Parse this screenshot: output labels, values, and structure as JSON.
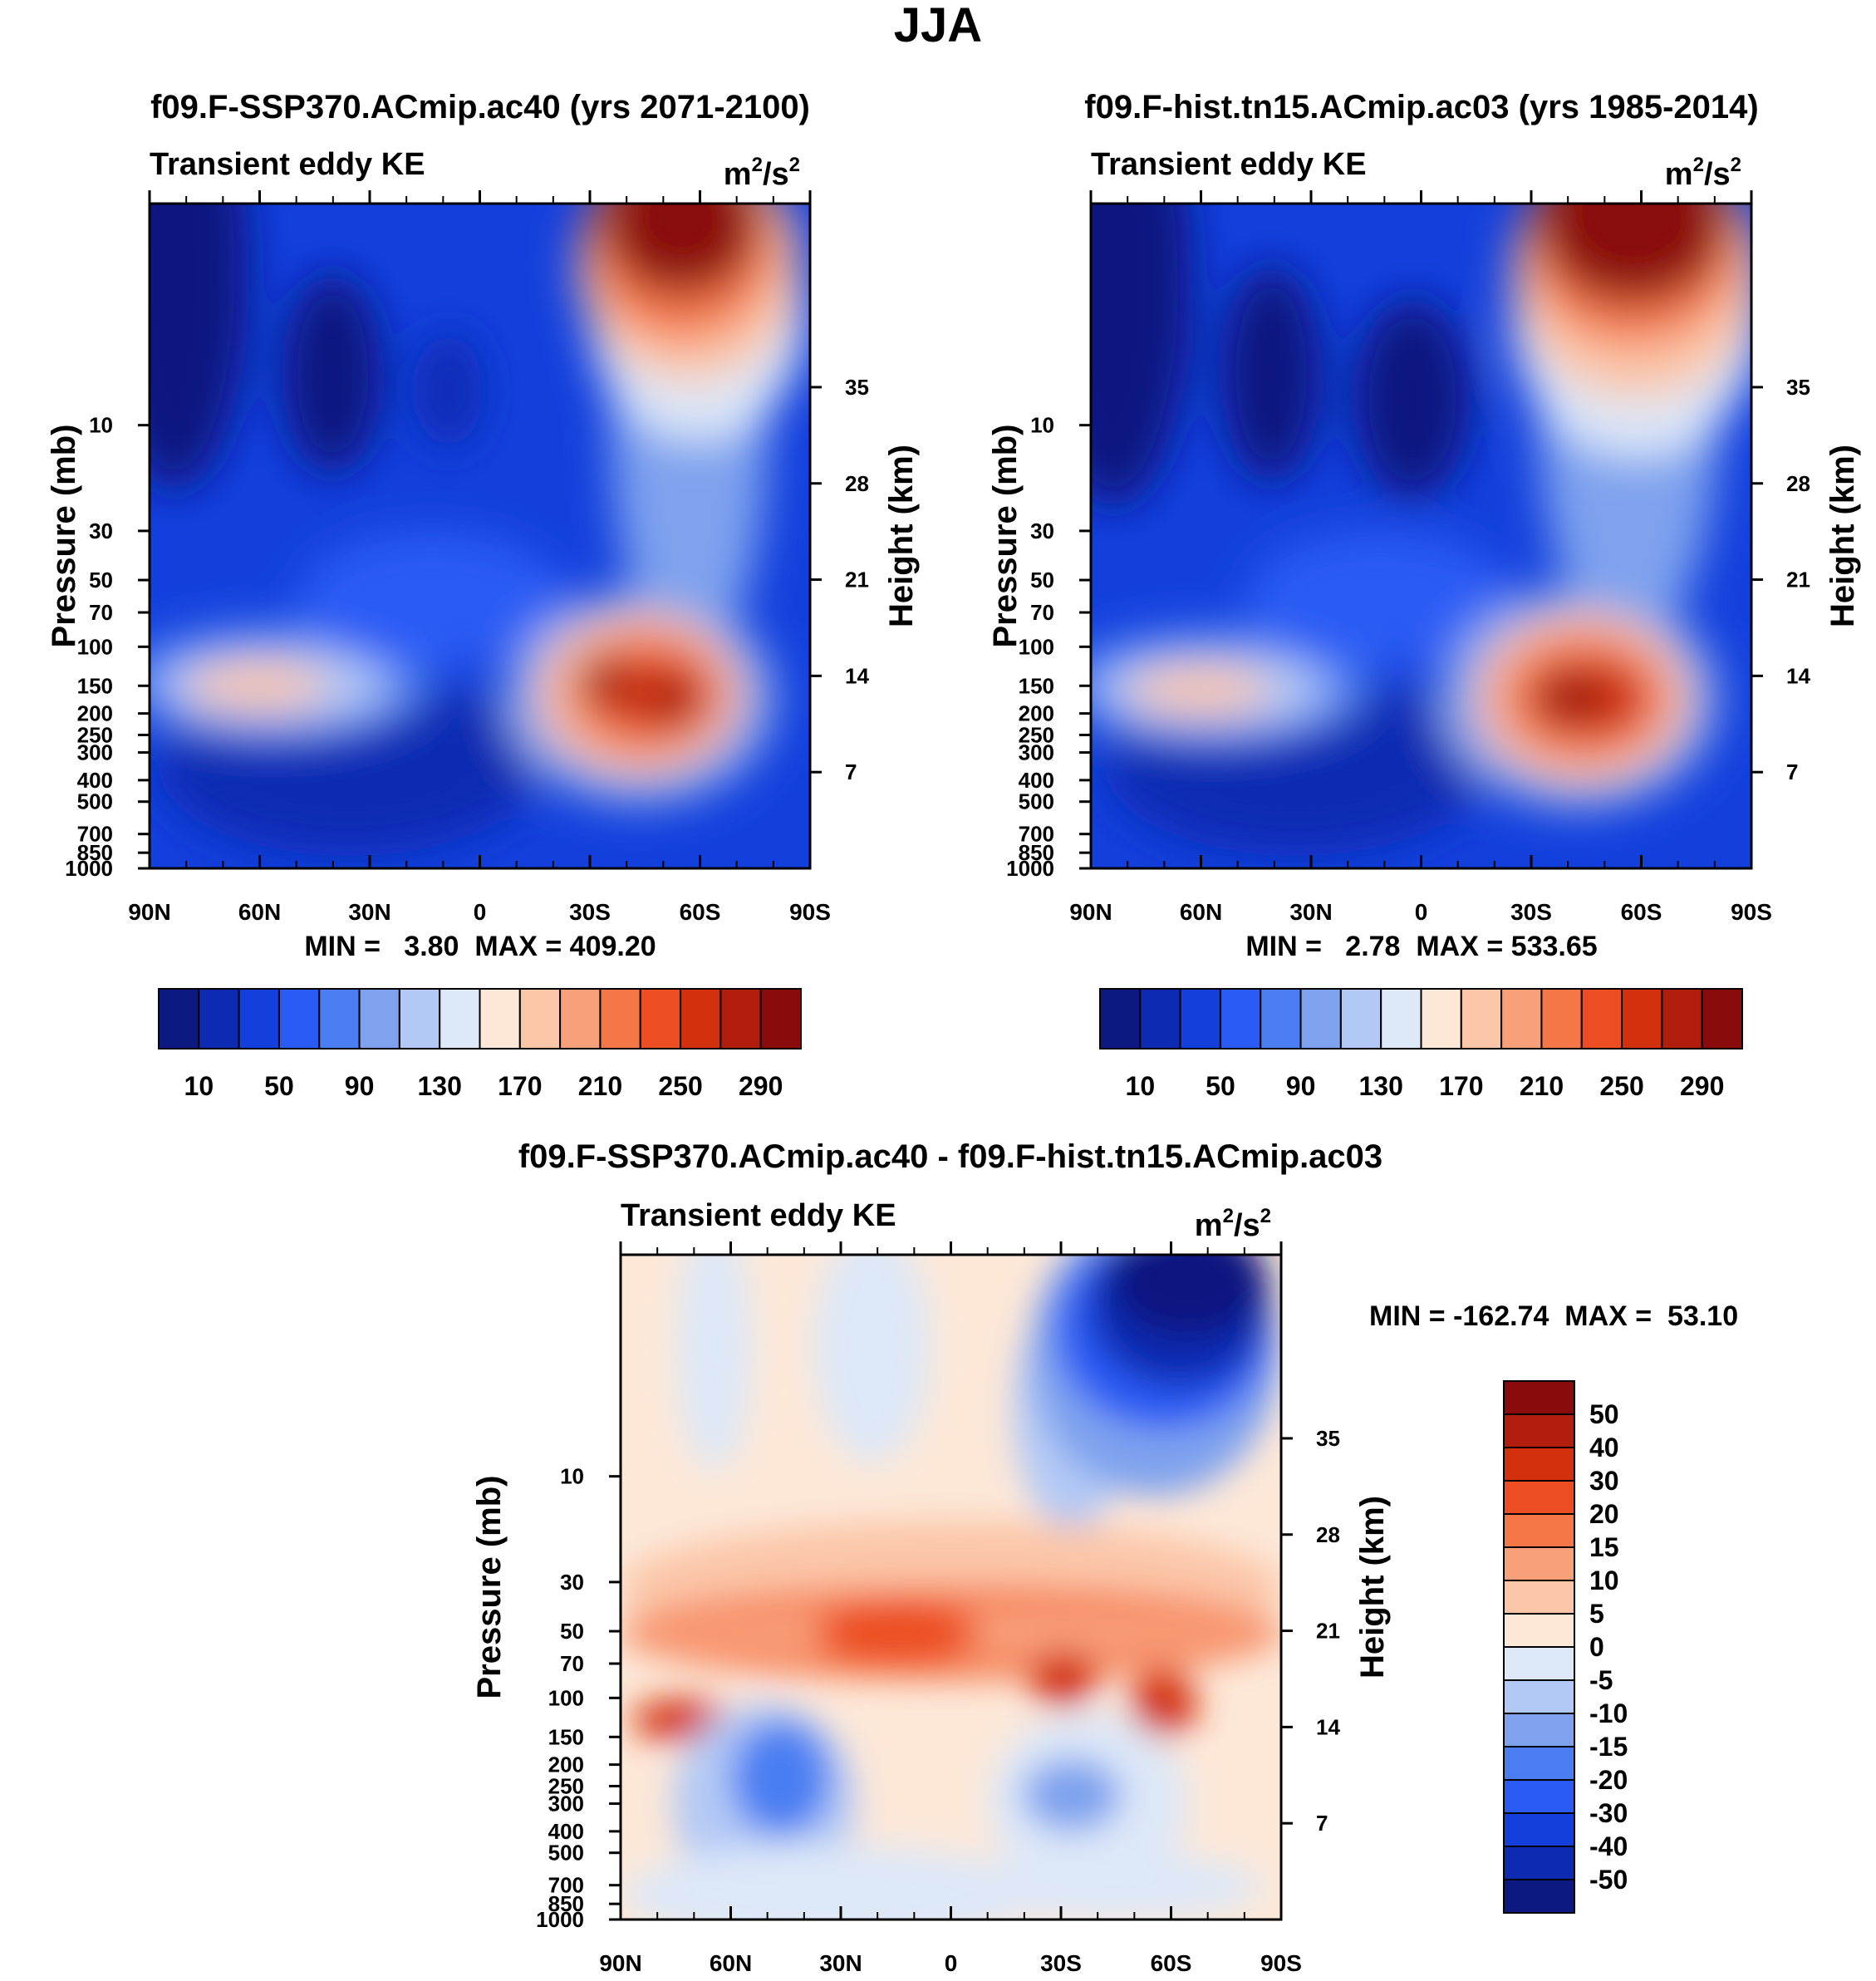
{
  "page_title": "JJA",
  "chart_data": [
    {
      "type": "heatmap",
      "id": "top-left",
      "title": "f09.F-SSP370.ACmip.ac40 (yrs 2071-2100)",
      "subtitle_left": "Transient eddy KE",
      "units_base": "m",
      "units_sup1": "2",
      "units_mid": "/s",
      "units_sup2": "2",
      "xlabel": "",
      "ylabel": "Pressure (mb)",
      "ylabel_right": "Height (km)",
      "x_ticks": [
        "90N",
        "60N",
        "30N",
        "0",
        "30S",
        "60S",
        "90S"
      ],
      "y_ticks": [
        "10",
        "30",
        "50",
        "70",
        "100",
        "150",
        "200",
        "250",
        "300",
        "400",
        "500",
        "700",
        "850",
        "1000"
      ],
      "y_ticks_right": [
        "35",
        "28",
        "21",
        "14",
        "7"
      ],
      "stats": "MIN =   3.80  MAX = 409.20",
      "min": 3.8,
      "max": 409.2,
      "colorbar_labels": [
        "10",
        "50",
        "90",
        "130",
        "170",
        "210",
        "250",
        "290"
      ],
      "colorbar_levels": [
        10,
        30,
        50,
        70,
        90,
        110,
        130,
        150,
        170,
        190,
        210,
        230,
        250,
        270,
        290
      ]
    },
    {
      "type": "heatmap",
      "id": "top-right",
      "title": "f09.F-hist.tn15.ACmip.ac03 (yrs 1985-2014)",
      "subtitle_left": "Transient eddy KE",
      "units_base": "m",
      "units_sup1": "2",
      "units_mid": "/s",
      "units_sup2": "2",
      "xlabel": "",
      "ylabel": "Pressure (mb)",
      "ylabel_right": "Height (km)",
      "x_ticks": [
        "90N",
        "60N",
        "30N",
        "0",
        "30S",
        "60S",
        "90S"
      ],
      "y_ticks": [
        "10",
        "30",
        "50",
        "70",
        "100",
        "150",
        "200",
        "250",
        "300",
        "400",
        "500",
        "700",
        "850",
        "1000"
      ],
      "y_ticks_right": [
        "35",
        "28",
        "21",
        "14",
        "7"
      ],
      "stats": "MIN =   2.78  MAX = 533.65",
      "min": 2.78,
      "max": 533.65,
      "colorbar_labels": [
        "10",
        "50",
        "90",
        "130",
        "170",
        "210",
        "250",
        "290"
      ],
      "colorbar_levels": [
        10,
        30,
        50,
        70,
        90,
        110,
        130,
        150,
        170,
        190,
        210,
        230,
        250,
        270,
        290
      ]
    },
    {
      "type": "heatmap",
      "id": "bottom-diff",
      "title": "f09.F-SSP370.ACmip.ac40 - f09.F-hist.tn15.ACmip.ac03",
      "subtitle_left": "Transient eddy KE",
      "units_base": "m",
      "units_sup1": "2",
      "units_mid": "/s",
      "units_sup2": "2",
      "xlabel": "",
      "ylabel": "Pressure (mb)",
      "ylabel_right": "Height (km)",
      "x_ticks": [
        "90N",
        "60N",
        "30N",
        "0",
        "30S",
        "60S",
        "90S"
      ],
      "y_ticks": [
        "10",
        "30",
        "50",
        "70",
        "100",
        "150",
        "200",
        "250",
        "300",
        "400",
        "500",
        "700",
        "850",
        "1000"
      ],
      "y_ticks_right": [
        "35",
        "28",
        "21",
        "14",
        "7"
      ],
      "stats": "MIN = -162.74  MAX =  53.10",
      "min": -162.74,
      "max": 53.1,
      "colorbar_labels": [
        "50",
        "40",
        "30",
        "20",
        "15",
        "10",
        "5",
        "0",
        "-5",
        "-10",
        "-15",
        "-20",
        "-30",
        "-40",
        "-50"
      ],
      "colorbar_levels": [
        -50,
        -40,
        -30,
        -20,
        -15,
        -10,
        -5,
        0,
        5,
        10,
        15,
        20,
        30,
        40,
        50
      ]
    }
  ],
  "palette": [
    "#0b1980",
    "#0d2bb2",
    "#1340dd",
    "#2a5cf5",
    "#4a7ef2",
    "#7ea2ee",
    "#b3c9f5",
    "#dde8f8",
    "#fde8d8",
    "#fbc6a8",
    "#f8a07a",
    "#f57748",
    "#ec4d22",
    "#d3300e",
    "#b21e0e",
    "#8a0b0b"
  ]
}
